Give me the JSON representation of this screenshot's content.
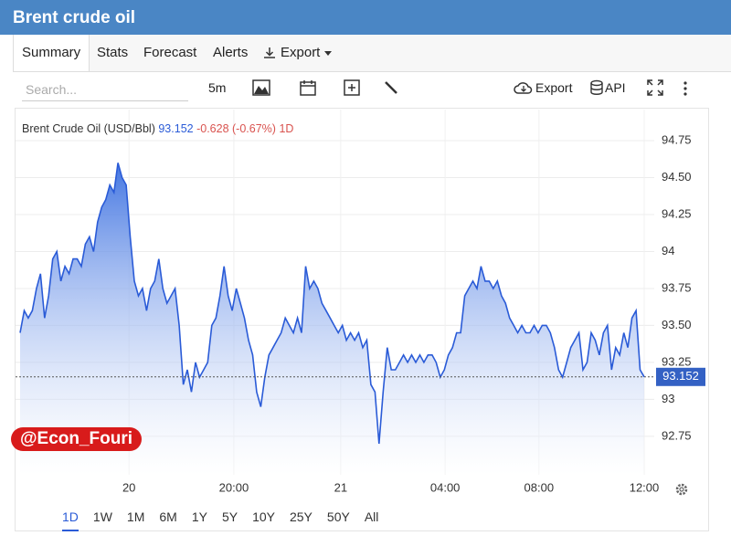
{
  "header": {
    "title": "Brent crude oil"
  },
  "tabs": [
    "Summary",
    "Stats",
    "Forecast",
    "Alerts",
    "Export"
  ],
  "toolbar": {
    "search_placeholder": "Search...",
    "interval": "5m",
    "export": "Export",
    "api": "API"
  },
  "legend": {
    "instrument": "Brent Crude Oil (USD/Bbl)",
    "change": "-0.628",
    "change_pct": "(-0.67%)",
    "period": "1D"
  },
  "watermark": "@Econ_Fouri",
  "ranges": [
    "1D",
    "1W",
    "1M",
    "6M",
    "1Y",
    "5Y",
    "10Y",
    "25Y",
    "50Y",
    "All"
  ],
  "chart_data": {
    "type": "area",
    "color": "#2a5bd7",
    "grid": true,
    "values": [
      93.45,
      93.6,
      93.55,
      93.6,
      93.75,
      93.85,
      93.55,
      93.7,
      93.95,
      94.0,
      93.8,
      93.9,
      93.85,
      93.95,
      93.95,
      93.9,
      94.05,
      94.1,
      94.0,
      94.2,
      94.3,
      94.35,
      94.45,
      94.4,
      94.6,
      94.5,
      94.45,
      94.1,
      93.8,
      93.7,
      93.75,
      93.6,
      93.75,
      93.8,
      93.95,
      93.75,
      93.65,
      93.7,
      93.75,
      93.5,
      93.1,
      93.2,
      93.05,
      93.25,
      93.15,
      93.2,
      93.25,
      93.5,
      93.55,
      93.7,
      93.9,
      93.7,
      93.6,
      93.75,
      93.65,
      93.55,
      93.4,
      93.3,
      93.05,
      92.95,
      93.15,
      93.3,
      93.35,
      93.4,
      93.45,
      93.55,
      93.5,
      93.45,
      93.55,
      93.45,
      93.9,
      93.75,
      93.8,
      93.75,
      93.65,
      93.6,
      93.55,
      93.5,
      93.45,
      93.5,
      93.4,
      93.45,
      93.4,
      93.45,
      93.35,
      93.4,
      93.1,
      93.05,
      92.7,
      93.05,
      93.35,
      93.2,
      93.2,
      93.25,
      93.3,
      93.25,
      93.3,
      93.25,
      93.3,
      93.25,
      93.3,
      93.3,
      93.25,
      93.15,
      93.2,
      93.3,
      93.35,
      93.45,
      93.45,
      93.7,
      93.75,
      93.8,
      93.75,
      93.9,
      93.8,
      93.8,
      93.75,
      93.8,
      93.7,
      93.65,
      93.55,
      93.5,
      93.45,
      93.5,
      93.45,
      93.45,
      93.5,
      93.45,
      93.5,
      93.5,
      93.45,
      93.35,
      93.2,
      93.15,
      93.25,
      93.35,
      93.4,
      93.45,
      93.2,
      93.25,
      93.45,
      93.4,
      93.3,
      93.45,
      93.5,
      93.2,
      93.35,
      93.3,
      93.45,
      93.35,
      93.55,
      93.6,
      93.2,
      93.152
    ],
    "xlim": [
      0,
      153
    ],
    "xticks": [
      {
        "value": 26.7,
        "label": "20"
      },
      {
        "value": 52.4,
        "label": "20:00"
      },
      {
        "value": 78.6,
        "label": "21"
      },
      {
        "value": 104.2,
        "label": "04:00"
      },
      {
        "value": 127.2,
        "label": "08:00"
      },
      {
        "value": 153,
        "label": "12:00"
      }
    ],
    "ylim": [
      92.49,
      94.96
    ],
    "yticks": [
      92.75,
      93,
      93.25,
      {
        "value": 93.5,
        "label": "93.50"
      },
      93.75,
      94,
      94.25,
      {
        "value": 94.5,
        "label": "94.50"
      },
      94.75
    ]
  }
}
